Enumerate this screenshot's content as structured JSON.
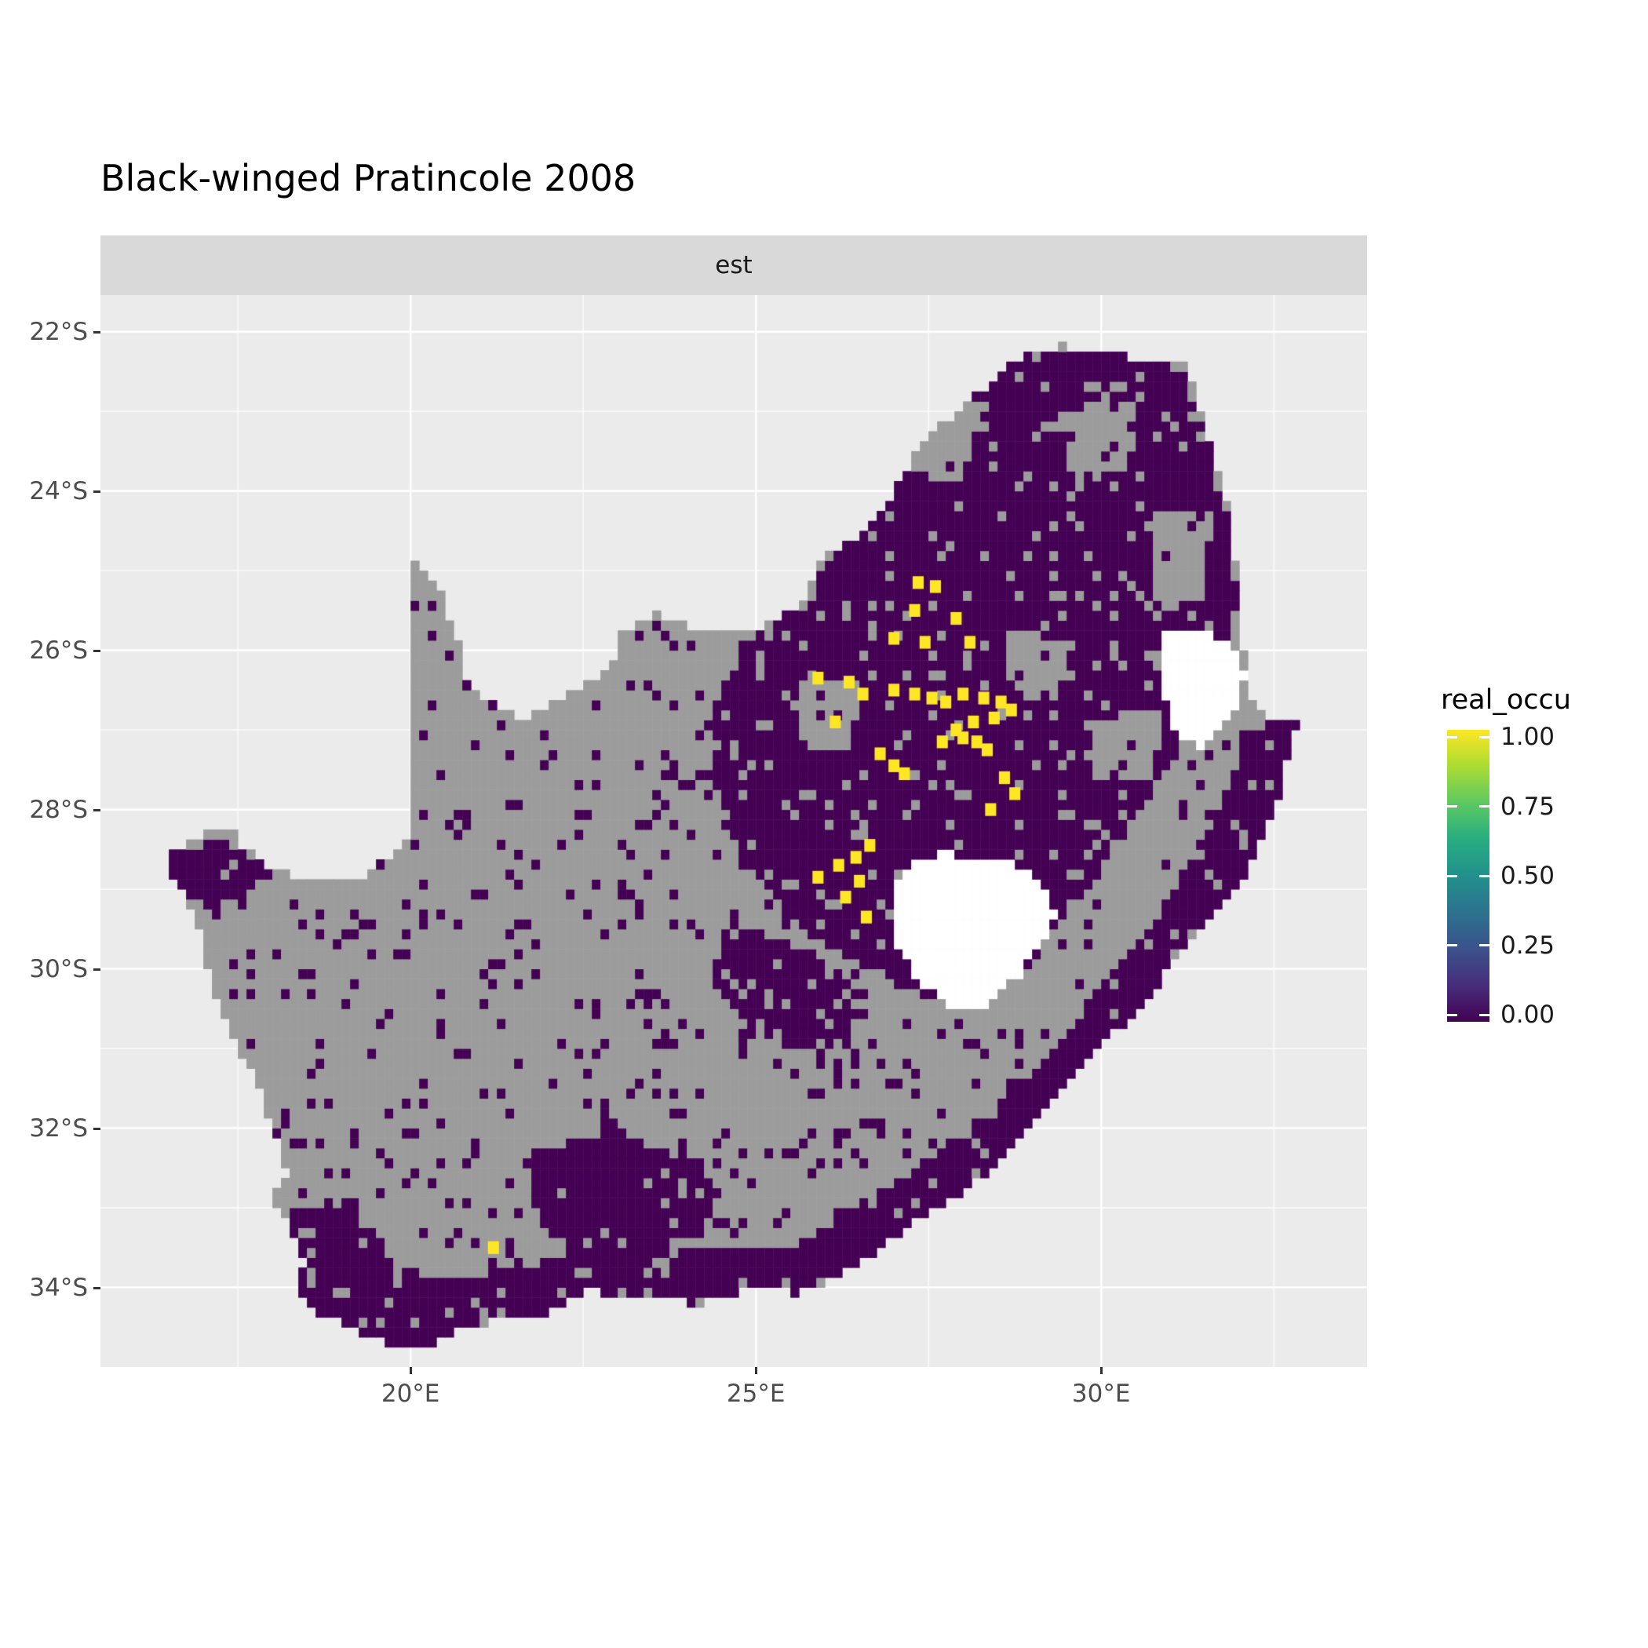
{
  "title": "Black-winged Pratincole 2008",
  "facet": {
    "label": "est"
  },
  "axes": {
    "x": {
      "ticks": [
        {
          "label": "20°E",
          "lon": 20
        },
        {
          "label": "25°E",
          "lon": 25
        },
        {
          "label": "30°E",
          "lon": 30
        }
      ],
      "minor": [
        17.5,
        22.5,
        27.5,
        32.5
      ]
    },
    "y": {
      "ticks": [
        {
          "label": "22°S",
          "lat": -22
        },
        {
          "label": "24°S",
          "lat": -24
        },
        {
          "label": "26°S",
          "lat": -26
        },
        {
          "label": "28°S",
          "lat": -28
        },
        {
          "label": "30°S",
          "lat": -30
        },
        {
          "label": "32°S",
          "lat": -32
        },
        {
          "label": "34°S",
          "lat": -34
        }
      ],
      "minor": [
        -23,
        -25,
        -27,
        -29,
        -31,
        -33
      ]
    }
  },
  "legend": {
    "title": "real_occu",
    "ticks": [
      {
        "label": "1.00",
        "value": 1.0
      },
      {
        "label": "0.75",
        "value": 0.75
      },
      {
        "label": "0.50",
        "value": 0.5
      },
      {
        "label": "0.25",
        "value": 0.25
      },
      {
        "label": "0.00",
        "value": 0.0
      }
    ],
    "viridis_stops": [
      [
        0.0,
        "#440154"
      ],
      [
        0.125,
        "#472d7b"
      ],
      [
        0.25,
        "#3b528b"
      ],
      [
        0.375,
        "#2c728e"
      ],
      [
        0.5,
        "#21918c"
      ],
      [
        0.625,
        "#27ad81"
      ],
      [
        0.75,
        "#5ec962"
      ],
      [
        0.875,
        "#aadc32"
      ],
      [
        1.0,
        "#fde725"
      ]
    ]
  },
  "chart_data": {
    "type": "heatmap",
    "title": "Black-winged Pratincole 2008",
    "facet_label": "est",
    "legend_title": "real_occu",
    "value_range": [
      0,
      1
    ],
    "description": "Gridded (pentad) map of South Africa showing estimated real occupancy for Black-winged Pratincole in 2008: dark purple cells = 0.00, yellow cells = 1.00 (cluster over the Highveld / NW Free State / Gauteng region), grey cells = no data, white holes = Lesotho and Eswatini.",
    "extent": {
      "lon": [
        15.51,
        33.85
      ],
      "lat": [
        -35.0,
        -21.54
      ]
    },
    "cell_size_deg": 0.125,
    "colors": {
      "panel": "#ebebeb",
      "gridline": "#ffffff",
      "na": "#9c9c9c",
      "occ0": "#440154",
      "occ1": "#fde725",
      "hole": "#ffffff"
    },
    "sa_outline": [
      [
        16.45,
        -28.6
      ],
      [
        16.75,
        -28.45
      ],
      [
        17.05,
        -28.3
      ],
      [
        17.35,
        -28.2
      ],
      [
        17.6,
        -28.5
      ],
      [
        18.05,
        -28.75
      ],
      [
        18.6,
        -28.95
      ],
      [
        19.25,
        -28.85
      ],
      [
        19.7,
        -28.6
      ],
      [
        19.98,
        -28.4
      ],
      [
        19.98,
        -24.77
      ],
      [
        20.4,
        -25.2
      ],
      [
        20.7,
        -25.9
      ],
      [
        20.85,
        -26.45
      ],
      [
        21.6,
        -26.85
      ],
      [
        22.25,
        -26.6
      ],
      [
        22.9,
        -26.2
      ],
      [
        23.05,
        -25.75
      ],
      [
        23.55,
        -25.55
      ],
      [
        24.2,
        -25.75
      ],
      [
        24.8,
        -25.8
      ],
      [
        25.35,
        -25.6
      ],
      [
        25.65,
        -25.45
      ],
      [
        25.95,
        -24.85
      ],
      [
        26.5,
        -24.6
      ],
      [
        26.9,
        -24.2
      ],
      [
        27.25,
        -23.6
      ],
      [
        27.65,
        -23.18
      ],
      [
        28.25,
        -22.75
      ],
      [
        28.9,
        -22.28
      ],
      [
        29.4,
        -22.18
      ],
      [
        30.3,
        -22.3
      ],
      [
        31.25,
        -22.42
      ],
      [
        31.6,
        -23.5
      ],
      [
        31.88,
        -24.4
      ],
      [
        31.98,
        -25.3
      ],
      [
        32.05,
        -25.9
      ],
      [
        32.1,
        -26.5
      ],
      [
        32.45,
        -26.85
      ],
      [
        32.85,
        -26.88
      ],
      [
        32.55,
        -27.9
      ],
      [
        32.05,
        -28.9
      ],
      [
        31.25,
        -29.7
      ],
      [
        30.55,
        -30.5
      ],
      [
        29.85,
        -31.1
      ],
      [
        29.05,
        -31.95
      ],
      [
        28.15,
        -32.7
      ],
      [
        27.2,
        -33.25
      ],
      [
        26.3,
        -33.8
      ],
      [
        25.6,
        -34.08
      ],
      [
        24.95,
        -34.0
      ],
      [
        24.15,
        -34.2
      ],
      [
        23.35,
        -34.1
      ],
      [
        22.55,
        -34.05
      ],
      [
        21.85,
        -34.4
      ],
      [
        20.95,
        -34.45
      ],
      [
        20.0,
        -34.82
      ],
      [
        19.35,
        -34.6
      ],
      [
        18.85,
        -34.4
      ],
      [
        18.45,
        -34.2
      ],
      [
        18.32,
        -33.92
      ],
      [
        18.45,
        -33.7
      ],
      [
        18.2,
        -33.2
      ],
      [
        17.95,
        -32.8
      ],
      [
        18.25,
        -32.62
      ],
      [
        18.0,
        -32.0
      ],
      [
        17.85,
        -31.55
      ],
      [
        17.4,
        -30.85
      ],
      [
        17.05,
        -30.0
      ],
      [
        16.9,
        -29.4
      ],
      [
        16.6,
        -28.9
      ]
    ],
    "holes": {
      "lesotho": [
        [
          27.05,
          -28.9
        ],
        [
          27.35,
          -28.6
        ],
        [
          27.75,
          -28.55
        ],
        [
          28.3,
          -28.6
        ],
        [
          28.75,
          -28.7
        ],
        [
          29.1,
          -28.9
        ],
        [
          29.35,
          -29.25
        ],
        [
          29.15,
          -29.65
        ],
        [
          28.8,
          -30.1
        ],
        [
          28.2,
          -30.55
        ],
        [
          27.75,
          -30.45
        ],
        [
          27.35,
          -30.15
        ],
        [
          27.0,
          -29.6
        ]
      ],
      "eswatini": [
        [
          30.85,
          -25.75
        ],
        [
          31.45,
          -25.7
        ],
        [
          31.95,
          -25.95
        ],
        [
          32.1,
          -26.3
        ],
        [
          31.9,
          -26.85
        ],
        [
          31.45,
          -27.25
        ],
        [
          31.05,
          -27.0
        ],
        [
          30.85,
          -26.4
        ]
      ]
    },
    "occ0_zones": [
      [
        [
          24.3,
          -26.9
        ],
        [
          24.8,
          -26.0
        ],
        [
          25.4,
          -25.55
        ],
        [
          25.75,
          -25.5
        ],
        [
          26.0,
          -24.85
        ],
        [
          26.5,
          -24.55
        ],
        [
          26.9,
          -24.2
        ],
        [
          27.25,
          -23.6
        ],
        [
          27.65,
          -23.15
        ],
        [
          28.25,
          -22.75
        ],
        [
          28.9,
          -22.25
        ],
        [
          29.4,
          -22.2
        ],
        [
          30.3,
          -22.3
        ],
        [
          31.25,
          -22.45
        ],
        [
          31.6,
          -23.5
        ],
        [
          31.9,
          -24.5
        ],
        [
          31.95,
          -25.3
        ],
        [
          31.9,
          -26.3
        ],
        [
          31.3,
          -27.0
        ],
        [
          30.5,
          -28.1
        ],
        [
          29.7,
          -29.1
        ],
        [
          28.9,
          -30.0
        ],
        [
          28.1,
          -30.5
        ],
        [
          27.3,
          -30.3
        ],
        [
          26.4,
          -29.9
        ],
        [
          25.5,
          -29.4
        ],
        [
          24.8,
          -28.6
        ],
        [
          24.45,
          -27.8
        ]
      ],
      [
        [
          32.85,
          -26.9
        ],
        [
          32.55,
          -27.9
        ],
        [
          32.05,
          -28.9
        ],
        [
          31.25,
          -29.7
        ],
        [
          30.55,
          -30.5
        ],
        [
          29.85,
          -31.1
        ],
        [
          29.05,
          -31.95
        ],
        [
          28.15,
          -32.7
        ],
        [
          27.2,
          -33.25
        ],
        [
          26.3,
          -33.8
        ],
        [
          25.5,
          -34.1
        ],
        [
          25.45,
          -33.5
        ],
        [
          26.2,
          -33.1
        ],
        [
          27.3,
          -32.5
        ],
        [
          28.4,
          -31.8
        ],
        [
          29.4,
          -30.9
        ],
        [
          30.2,
          -30.0
        ],
        [
          30.9,
          -29.2
        ],
        [
          31.6,
          -28.2
        ],
        [
          32.1,
          -27.1
        ],
        [
          32.4,
          -26.85
        ]
      ],
      [
        [
          18.35,
          -33.95
        ],
        [
          19.3,
          -34.45
        ],
        [
          20.0,
          -34.8
        ],
        [
          20.9,
          -34.45
        ],
        [
          21.9,
          -34.35
        ],
        [
          22.9,
          -34.1
        ],
        [
          24.0,
          -34.2
        ],
        [
          25.0,
          -34.05
        ],
        [
          25.7,
          -34.05
        ],
        [
          25.6,
          -33.5
        ],
        [
          24.6,
          -33.5
        ],
        [
          23.5,
          -33.6
        ],
        [
          22.4,
          -33.6
        ],
        [
          21.3,
          -33.8
        ],
        [
          20.3,
          -33.9
        ],
        [
          19.4,
          -33.5
        ],
        [
          18.6,
          -33.3
        ]
      ],
      [
        [
          18.2,
          -33.0
        ],
        [
          19.1,
          -32.9
        ],
        [
          19.7,
          -33.5
        ],
        [
          19.9,
          -34.1
        ],
        [
          19.3,
          -34.7
        ],
        [
          18.5,
          -34.35
        ],
        [
          18.3,
          -33.8
        ]
      ],
      [
        [
          21.8,
          -32.3
        ],
        [
          23.0,
          -32.0
        ],
        [
          24.2,
          -32.4
        ],
        [
          24.45,
          -33.2
        ],
        [
          23.4,
          -33.7
        ],
        [
          22.3,
          -33.6
        ],
        [
          21.75,
          -33.0
        ]
      ],
      [
        [
          16.45,
          -28.55
        ],
        [
          17.45,
          -28.35
        ],
        [
          17.9,
          -28.85
        ],
        [
          17.2,
          -29.35
        ],
        [
          16.6,
          -28.95
        ]
      ],
      [
        [
          24.6,
          -29.4
        ],
        [
          25.8,
          -29.8
        ],
        [
          26.6,
          -30.3
        ],
        [
          26.2,
          -31.05
        ],
        [
          25.15,
          -30.9
        ],
        [
          24.35,
          -30.2
        ]
      ]
    ],
    "na_patches": [
      [
        [
          27.0,
          -22.6
        ],
        [
          28.3,
          -22.9
        ],
        [
          28.0,
          -23.9
        ],
        [
          26.9,
          -23.7
        ]
      ],
      [
        [
          29.3,
          -23.0
        ],
        [
          30.6,
          -22.8
        ],
        [
          30.4,
          -23.8
        ],
        [
          29.5,
          -23.8
        ]
      ],
      [
        [
          30.8,
          -24.2
        ],
        [
          31.6,
          -24.3
        ],
        [
          31.4,
          -25.6
        ],
        [
          30.7,
          -25.4
        ]
      ],
      [
        [
          28.6,
          -25.7
        ],
        [
          29.6,
          -25.9
        ],
        [
          29.3,
          -26.7
        ],
        [
          28.7,
          -26.5
        ]
      ],
      [
        [
          29.8,
          -26.9
        ],
        [
          30.9,
          -26.7
        ],
        [
          30.7,
          -27.6
        ],
        [
          29.9,
          -27.6
        ]
      ],
      [
        [
          25.6,
          -26.4
        ],
        [
          26.5,
          -26.4
        ],
        [
          26.4,
          -27.2
        ],
        [
          25.7,
          -27.2
        ]
      ]
    ],
    "occ1_cells": [
      [
        27.35,
        -25.15
      ],
      [
        27.6,
        -25.2
      ],
      [
        27.3,
        -25.5
      ],
      [
        27.9,
        -25.6
      ],
      [
        27.0,
        -25.85
      ],
      [
        27.45,
        -25.9
      ],
      [
        28.1,
        -25.9
      ],
      [
        25.9,
        -26.35
      ],
      [
        26.35,
        -26.4
      ],
      [
        26.55,
        -26.55
      ],
      [
        27.0,
        -26.5
      ],
      [
        27.3,
        -26.55
      ],
      [
        27.55,
        -26.6
      ],
      [
        27.75,
        -26.65
      ],
      [
        28.0,
        -26.55
      ],
      [
        28.3,
        -26.6
      ],
      [
        28.55,
        -26.65
      ],
      [
        28.7,
        -26.75
      ],
      [
        28.45,
        -26.85
      ],
      [
        28.15,
        -26.9
      ],
      [
        26.15,
        -26.9
      ],
      [
        27.9,
        -27.0
      ],
      [
        28.0,
        -27.1
      ],
      [
        28.2,
        -27.15
      ],
      [
        28.35,
        -27.25
      ],
      [
        27.7,
        -27.15
      ],
      [
        26.8,
        -27.3
      ],
      [
        27.0,
        -27.45
      ],
      [
        27.15,
        -27.55
      ],
      [
        28.6,
        -27.6
      ],
      [
        28.75,
        -27.8
      ],
      [
        28.4,
        -28.0
      ],
      [
        26.65,
        -28.45
      ],
      [
        26.45,
        -28.6
      ],
      [
        26.2,
        -28.7
      ],
      [
        25.9,
        -28.85
      ],
      [
        26.5,
        -28.9
      ],
      [
        26.3,
        -29.1
      ],
      [
        26.6,
        -29.35
      ],
      [
        21.2,
        -33.5
      ]
    ],
    "noise": {
      "na_to_occ0": 0.085,
      "occ0_to_na": 0.1
    }
  }
}
